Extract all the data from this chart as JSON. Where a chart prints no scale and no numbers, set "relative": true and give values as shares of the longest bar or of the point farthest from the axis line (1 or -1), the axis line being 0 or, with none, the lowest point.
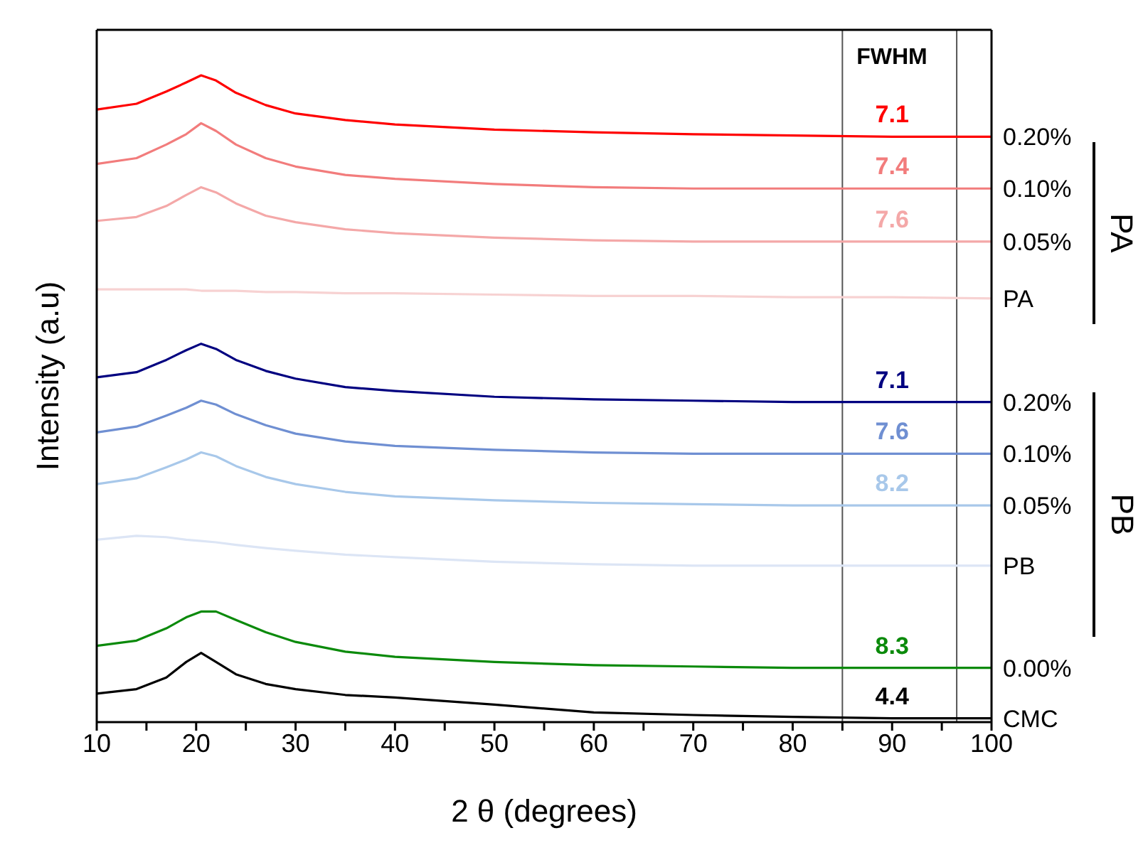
{
  "chart_data": {
    "type": "line",
    "relative": true,
    "xlabel": "2 θ (degrees)",
    "ylabel": "Intensity (a.u)",
    "xlim": [
      10,
      100
    ],
    "xticks": [
      10,
      {
        "value": 15,
        "label": null
      },
      20,
      {
        "value": 25,
        "label": null
      },
      30,
      {
        "value": 35,
        "label": null
      },
      40,
      {
        "value": 45,
        "label": null
      },
      50,
      {
        "value": 55,
        "label": null
      },
      60,
      {
        "value": 65,
        "label": null
      },
      70,
      {
        "value": 75,
        "label": null
      },
      80,
      {
        "value": 85,
        "label": null
      },
      90,
      {
        "value": 95,
        "label": null
      },
      100
    ],
    "x": [
      10,
      14,
      17,
      19,
      20.5,
      22,
      24,
      27,
      30,
      35,
      40,
      50,
      60,
      70,
      80,
      90,
      100
    ],
    "series": [
      {
        "name": "0.20%",
        "color": "#ff0000",
        "values": [
          0.947,
          0.956,
          0.975,
          0.989,
          1.0,
          0.992,
          0.973,
          0.954,
          0.941,
          0.931,
          0.924,
          0.916,
          0.912,
          0.909,
          0.907,
          0.905,
          0.905
        ]
      },
      {
        "name": "0.10%",
        "color": "#f27c7c",
        "values": [
          0.863,
          0.872,
          0.893,
          0.909,
          0.926,
          0.914,
          0.893,
          0.872,
          0.859,
          0.846,
          0.84,
          0.832,
          0.827,
          0.825,
          0.825,
          0.825,
          0.825
        ]
      },
      {
        "name": "0.05%",
        "color": "#f4a8a8",
        "values": [
          0.775,
          0.781,
          0.798,
          0.815,
          0.827,
          0.819,
          0.802,
          0.783,
          0.773,
          0.762,
          0.756,
          0.749,
          0.745,
          0.743,
          0.743,
          0.743,
          0.743
        ]
      },
      {
        "name": "PA",
        "color": "#f7d2d2",
        "values": [
          0.669,
          0.669,
          0.669,
          0.669,
          0.667,
          0.667,
          0.667,
          0.665,
          0.665,
          0.663,
          0.663,
          0.661,
          0.659,
          0.659,
          0.657,
          0.657,
          0.655
        ]
      },
      {
        "name": "0.20%",
        "color": "#000080",
        "values": [
          0.533,
          0.541,
          0.56,
          0.575,
          0.585,
          0.577,
          0.56,
          0.543,
          0.531,
          0.518,
          0.512,
          0.503,
          0.499,
          0.497,
          0.495,
          0.495,
          0.495
        ]
      },
      {
        "name": "0.10%",
        "color": "#6f8fd2",
        "values": [
          0.448,
          0.457,
          0.474,
          0.486,
          0.497,
          0.491,
          0.476,
          0.459,
          0.446,
          0.434,
          0.427,
          0.421,
          0.417,
          0.415,
          0.415,
          0.415,
          0.415
        ]
      },
      {
        "name": "0.05%",
        "color": "#a8c8ea",
        "values": [
          0.368,
          0.377,
          0.394,
          0.406,
          0.417,
          0.411,
          0.396,
          0.379,
          0.368,
          0.356,
          0.349,
          0.343,
          0.339,
          0.337,
          0.335,
          0.335,
          0.335
        ]
      },
      {
        "name": "PB",
        "color": "#dce5f5",
        "values": [
          0.282,
          0.288,
          0.286,
          0.282,
          0.28,
          0.278,
          0.274,
          0.269,
          0.265,
          0.259,
          0.255,
          0.248,
          0.244,
          0.242,
          0.242,
          0.242,
          0.242
        ]
      },
      {
        "name": "0.00%",
        "color": "#0b8a0b",
        "values": [
          0.118,
          0.126,
          0.145,
          0.162,
          0.171,
          0.171,
          0.158,
          0.139,
          0.124,
          0.109,
          0.101,
          0.093,
          0.088,
          0.086,
          0.084,
          0.084,
          0.084
        ]
      },
      {
        "name": "CMC",
        "color": "#000000",
        "values": [
          0.044,
          0.051,
          0.069,
          0.093,
          0.107,
          0.093,
          0.074,
          0.059,
          0.051,
          0.042,
          0.038,
          0.027,
          0.015,
          0.011,
          0.008,
          0.006,
          0.006
        ]
      }
    ],
    "ref_lines": [
      {
        "axis": "x",
        "value": 85,
        "color": "#555555"
      },
      {
        "axis": "x",
        "value": 96.5,
        "color": "#555555"
      }
    ],
    "annotations": [
      "FWHM",
      "PA",
      "PB",
      "7.1",
      "7.4",
      "7.6",
      "7.1",
      "7.6",
      "8.2",
      "8.3",
      "4.4"
    ]
  }
}
